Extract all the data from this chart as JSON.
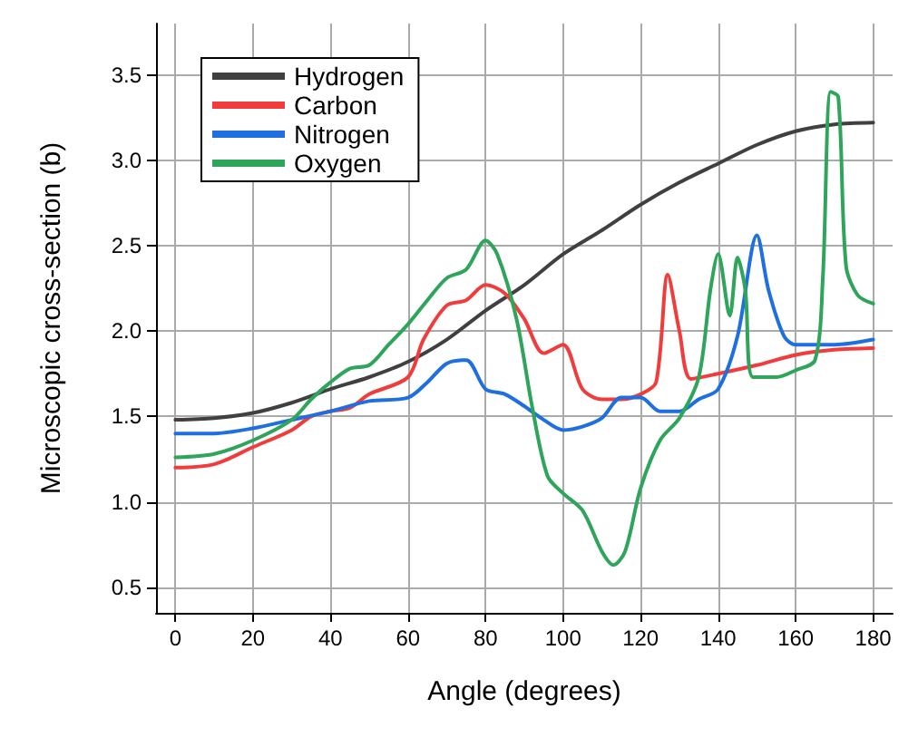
{
  "chart_data": {
    "type": "line",
    "xlabel": "Angle (degrees)",
    "ylabel": "Microscopic cross-section (b)",
    "xlim": [
      -5,
      185
    ],
    "ylim": [
      0.35,
      3.8
    ],
    "xticks": [
      0,
      20,
      40,
      60,
      80,
      100,
      120,
      140,
      160,
      180
    ],
    "yticks": [
      0.5,
      {
        "value": 1,
        "label": "1.0"
      },
      1.5,
      {
        "value": 2,
        "label": "2.0"
      },
      2.5,
      {
        "value": 3,
        "label": "3.0"
      },
      3.5
    ],
    "grid": true,
    "legend": "top left",
    "marker": "none",
    "line_style": "solid",
    "series": [
      {
        "name": "Hydrogen",
        "color": "#404040",
        "x": [
          0,
          10,
          20,
          30,
          40,
          50,
          60,
          70,
          80,
          90,
          100,
          110,
          120,
          130,
          140,
          150,
          160,
          170,
          180
        ],
        "values": [
          1.48,
          1.49,
          1.52,
          1.58,
          1.66,
          1.73,
          1.82,
          1.95,
          2.12,
          2.27,
          2.45,
          2.59,
          2.74,
          2.87,
          2.98,
          3.09,
          3.17,
          3.21,
          3.22
        ]
      },
      {
        "name": "Carbon",
        "color": "#f03c3c",
        "x": [
          0,
          10,
          20,
          30,
          35,
          40,
          45,
          50,
          60,
          64,
          70,
          75,
          80,
          85,
          90,
          95,
          100,
          105,
          110,
          115,
          120,
          124,
          127,
          130,
          133,
          140,
          150,
          160,
          170,
          180
        ],
        "values": [
          1.2,
          1.22,
          1.32,
          1.42,
          1.5,
          1.53,
          1.55,
          1.63,
          1.73,
          1.95,
          2.15,
          2.18,
          2.27,
          2.22,
          2.07,
          1.87,
          1.92,
          1.66,
          1.6,
          1.6,
          1.63,
          1.7,
          2.33,
          2.0,
          1.72,
          1.75,
          1.8,
          1.86,
          1.89,
          1.9
        ]
      },
      {
        "name": "Nitrogen",
        "color": "#1f6fe0",
        "x": [
          0,
          10,
          20,
          30,
          40,
          50,
          60,
          65,
          70,
          75,
          80,
          85,
          90,
          95,
          100,
          105,
          110,
          115,
          120,
          125,
          130,
          135,
          140,
          145,
          150,
          153,
          157,
          160,
          170,
          180
        ],
        "values": [
          1.4,
          1.4,
          1.43,
          1.48,
          1.53,
          1.59,
          1.61,
          1.7,
          1.81,
          1.83,
          1.66,
          1.63,
          1.56,
          1.48,
          1.42,
          1.44,
          1.49,
          1.61,
          1.61,
          1.53,
          1.53,
          1.6,
          1.66,
          1.97,
          2.56,
          2.24,
          1.97,
          1.92,
          1.92,
          1.95
        ]
      },
      {
        "name": "Oxygen",
        "color": "#2ea55a",
        "x": [
          0,
          10,
          20,
          30,
          35,
          40,
          45,
          50,
          55,
          60,
          65,
          70,
          75,
          80,
          83,
          88,
          92,
          96,
          100,
          105,
          110,
          113,
          116,
          120,
          125,
          130,
          135,
          138,
          140,
          143,
          145,
          147,
          149,
          155,
          160,
          165,
          167,
          169,
          171,
          173,
          176,
          180
        ],
        "values": [
          1.26,
          1.28,
          1.36,
          1.48,
          1.6,
          1.7,
          1.78,
          1.8,
          1.92,
          2.04,
          2.18,
          2.31,
          2.36,
          2.53,
          2.45,
          2.07,
          1.56,
          1.15,
          1.05,
          0.95,
          0.71,
          0.63,
          0.71,
          1.08,
          1.36,
          1.49,
          1.73,
          2.24,
          2.45,
          2.09,
          2.43,
          2.24,
          1.73,
          1.73,
          1.77,
          1.83,
          2.31,
          3.4,
          3.37,
          2.38,
          2.21,
          2.16
        ]
      }
    ]
  }
}
